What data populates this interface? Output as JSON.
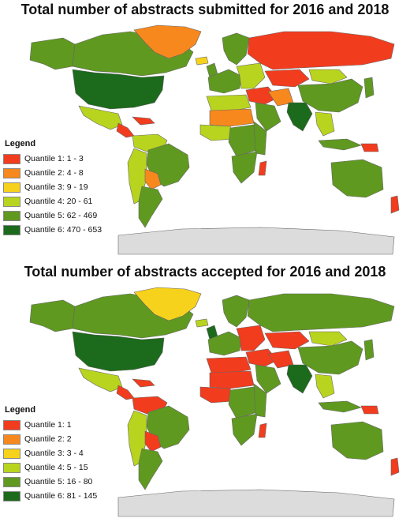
{
  "colors": {
    "q1": "#f23c1e",
    "q2": "#f7881d",
    "q3": "#f7d21c",
    "q4": "#b9d41e",
    "q5": "#5f9920",
    "q6": "#1c6a1b",
    "nodata": "#dcdcdc",
    "border": "#666666"
  },
  "maps": [
    {
      "title": "Total number of abstracts submitted for 2016 and 2018",
      "legend_title": "Legend",
      "legend": [
        {
          "label": "Quantile 1: 1 - 3",
          "color": "#f23c1e"
        },
        {
          "label": "Quantile 2: 4 - 8",
          "color": "#f7881d"
        },
        {
          "label": "Quantile 3: 9 - 19",
          "color": "#f7d21c"
        },
        {
          "label": "Quantile 4: 20 - 61",
          "color": "#b9d41e"
        },
        {
          "label": "Quantile 5: 62 - 469",
          "color": "#5f9920"
        },
        {
          "label": "Quantile 6: 470 - 653",
          "color": "#1c6a1b"
        }
      ],
      "regions": {
        "canada": "q5",
        "usa": "q6",
        "alaska": "q5",
        "greenland": "q2",
        "mexico": "q4",
        "central_america": "q1",
        "caribbean": "q1",
        "colombia_venezuela": "q4",
        "brazil": "q5",
        "andes": "q4",
        "argentina": "q5",
        "bolivia_paraguay": "q2",
        "iceland": "q3",
        "scandinavia": "q5",
        "uk": "q5",
        "western_europe": "q5",
        "eastern_europe": "q4",
        "russia": "q1",
        "kazakhstan": "q1",
        "middle_east": "q1",
        "iran": "q2",
        "arabia": "q5",
        "india": "q6",
        "china": "q5",
        "mongolia": "q4",
        "se_asia": "q4",
        "indonesia": "q5",
        "japan": "q5",
        "north_africa": "q4",
        "sahara": "q2",
        "west_africa": "q4",
        "central_africa": "q5",
        "east_africa": "q5",
        "southern_africa": "q5",
        "madagascar": "q1",
        "australia": "q5",
        "png": "q1",
        "new_zealand": "q1",
        "antarctica": "nodata"
      }
    },
    {
      "title": "Total number of abstracts accepted for 2016 and 2018",
      "legend_title": "Legend",
      "legend": [
        {
          "label": "Quantile 1: 1",
          "color": "#f23c1e"
        },
        {
          "label": "Quantile 2: 2",
          "color": "#f7881d"
        },
        {
          "label": "Quantile 3: 3 - 4",
          "color": "#f7d21c"
        },
        {
          "label": "Quantile 4: 5 - 15",
          "color": "#b9d41e"
        },
        {
          "label": "Quantile 5: 16 - 80",
          "color": "#5f9920"
        },
        {
          "label": "Quantile 6: 81 - 145",
          "color": "#1c6a1b"
        }
      ],
      "regions": {
        "canada": "q5",
        "usa": "q6",
        "alaska": "q5",
        "greenland": "q3",
        "mexico": "q4",
        "central_america": "q1",
        "caribbean": "q1",
        "colombia_venezuela": "q1",
        "brazil": "q5",
        "andes": "q4",
        "argentina": "q5",
        "bolivia_paraguay": "q1",
        "iceland": "q4",
        "scandinavia": "q5",
        "uk": "q6",
        "western_europe": "q5",
        "eastern_europe": "q1",
        "russia": "q5",
        "kazakhstan": "q1",
        "middle_east": "q1",
        "iran": "q1",
        "arabia": "q5",
        "india": "q6",
        "china": "q5",
        "mongolia": "q4",
        "se_asia": "q4",
        "indonesia": "q5",
        "japan": "q5",
        "north_africa": "q1",
        "sahara": "q1",
        "west_africa": "q1",
        "central_africa": "q5",
        "east_africa": "q5",
        "southern_africa": "q5",
        "madagascar": "q1",
        "australia": "q5",
        "png": "q1",
        "new_zealand": "q1",
        "antarctica": "nodata"
      }
    }
  ]
}
